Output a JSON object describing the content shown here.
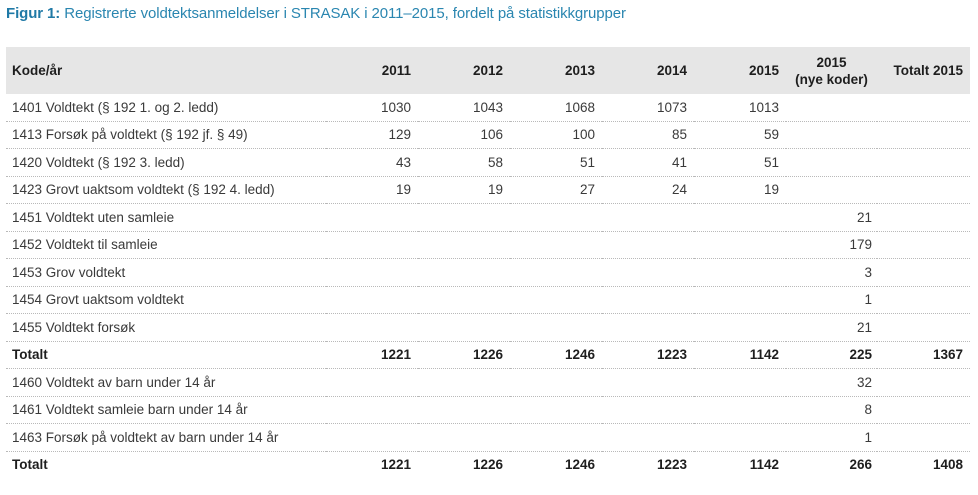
{
  "figure": {
    "label": "Figur 1:",
    "title": " Registrerte voldtektsanmeldelser i STRASAK i 2011–2015, fordelt på statistikkgrupper"
  },
  "table": {
    "headers": {
      "name": "Kode/år",
      "y2011": "2011",
      "y2012": "2012",
      "y2013": "2013",
      "y2014": "2014",
      "y2015": "2015",
      "y2015nye_line1": "2015",
      "y2015nye_line2": "(nye koder)",
      "total2015": "Totalt 2015"
    },
    "rows": [
      {
        "name": "1401 Voldtekt (§ 192 1. og 2. ledd)",
        "y2011": "1030",
        "y2012": "1043",
        "y2013": "1068",
        "y2014": "1073",
        "y2015": "1013",
        "nye": "",
        "total": ""
      },
      {
        "name": "1413 Forsøk på voldtekt (§ 192 jf. § 49)",
        "y2011": "129",
        "y2012": "106",
        "y2013": "100",
        "y2014": "85",
        "y2015": "59",
        "nye": "",
        "total": ""
      },
      {
        "name": "1420 Voldtekt (§ 192 3. ledd)",
        "y2011": "43",
        "y2012": "58",
        "y2013": "51",
        "y2014": "41",
        "y2015": "51",
        "nye": "",
        "total": ""
      },
      {
        "name": "1423 Grovt uaktsom voldtekt (§ 192 4. ledd)",
        "y2011": "19",
        "y2012": "19",
        "y2013": "27",
        "y2014": "24",
        "y2015": "19",
        "nye": "",
        "total": ""
      },
      {
        "name": "1451 Voldtekt uten samleie",
        "y2011": "",
        "y2012": "",
        "y2013": "",
        "y2014": "",
        "y2015": "",
        "nye": "21",
        "total": ""
      },
      {
        "name": "1452 Voldtekt til samleie",
        "y2011": "",
        "y2012": "",
        "y2013": "",
        "y2014": "",
        "y2015": "",
        "nye": "179",
        "total": ""
      },
      {
        "name": "1453 Grov voldtekt",
        "y2011": "",
        "y2012": "",
        "y2013": "",
        "y2014": "",
        "y2015": "",
        "nye": "3",
        "total": ""
      },
      {
        "name": "1454 Grovt uaktsom voldtekt",
        "y2011": "",
        "y2012": "",
        "y2013": "",
        "y2014": "",
        "y2015": "",
        "nye": "1",
        "total": ""
      },
      {
        "name": "1455 Voldtekt forsøk",
        "y2011": "",
        "y2012": "",
        "y2013": "",
        "y2014": "",
        "y2015": "",
        "nye": "21",
        "total": ""
      },
      {
        "name": "Totalt",
        "y2011": "1221",
        "y2012": "1226",
        "y2013": "1246",
        "y2014": "1223",
        "y2015": "1142",
        "nye": "225",
        "total": "1367"
      },
      {
        "name": "1460 Voldtekt av barn under 14 år",
        "y2011": "",
        "y2012": "",
        "y2013": "",
        "y2014": "",
        "y2015": "",
        "nye": "32",
        "total": ""
      },
      {
        "name": "1461 Voldtekt samleie barn under 14 år",
        "y2011": "",
        "y2012": "",
        "y2013": "",
        "y2014": "",
        "y2015": "",
        "nye": "8",
        "total": ""
      },
      {
        "name": "1463 Forsøk på voldtekt av barn under 14 år",
        "y2011": "",
        "y2012": "",
        "y2013": "",
        "y2014": "",
        "y2015": "",
        "nye": "1",
        "total": ""
      },
      {
        "name": "Totalt",
        "y2011": "1221",
        "y2012": "1226",
        "y2013": "1246",
        "y2014": "1223",
        "y2015": "1142",
        "nye": "266",
        "total": "1408"
      }
    ]
  },
  "colors": {
    "title": "#2a86b0",
    "header_bg": "#e6e6e6",
    "row_divider": "#b9b9b9"
  }
}
